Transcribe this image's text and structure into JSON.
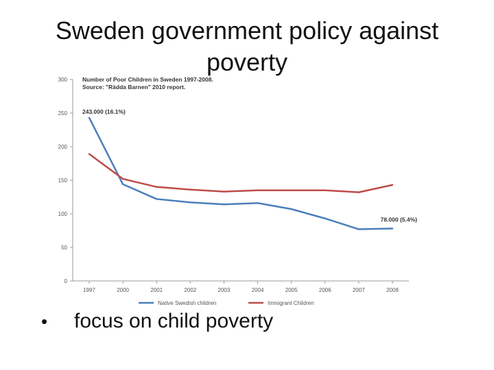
{
  "slide": {
    "title": "Sweden government policy against poverty",
    "bullet_symbol": "•",
    "bullet_text": "focus on child poverty"
  },
  "chart_data": {
    "type": "line",
    "title": "Number of Poor Children in Sweden 1997-2008.",
    "subtitle": "Source: \"Rädda Barnen\" 2010 report.",
    "categories": [
      "1997",
      "2000",
      "2001",
      "2002",
      "2003",
      "2004",
      "2005",
      "2006",
      "2007",
      "2008"
    ],
    "yticks": [
      0,
      50,
      100,
      150,
      200,
      250,
      300
    ],
    "ylim": [
      0,
      300
    ],
    "grid": false,
    "legend_position": "bottom",
    "series": [
      {
        "name": "Native Swedish children",
        "color": "#4a7ebb",
        "values": [
          243,
          144,
          122,
          117,
          114,
          116,
          107,
          93,
          77,
          78
        ]
      },
      {
        "name": "Immigrant Children",
        "color": "#be4b48",
        "values": [
          189,
          152,
          140,
          136,
          133,
          135,
          135,
          135,
          132,
          143
        ]
      }
    ],
    "annotations": [
      {
        "series": 0,
        "index": 0,
        "text": "243.000 (16.1%)"
      },
      {
        "series": 0,
        "index": 9,
        "text": "78.000 (5.4%)"
      }
    ]
  }
}
